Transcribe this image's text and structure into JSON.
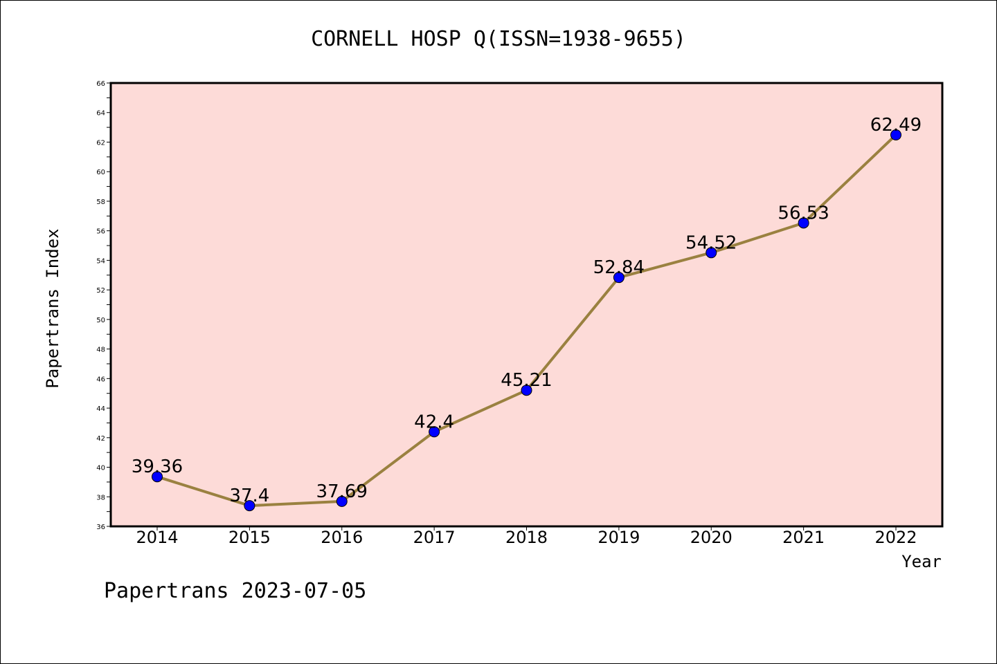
{
  "chart_data": {
    "type": "line",
    "title": "CORNELL HOSP Q(ISSN=1938-9655)",
    "xlabel": "Year",
    "ylabel": "Papertrans Index",
    "x": [
      "2014",
      "2015",
      "2016",
      "2017",
      "2018",
      "2019",
      "2020",
      "2021",
      "2022"
    ],
    "series": [
      {
        "values": [
          39.36,
          37.4,
          37.69,
          42.4,
          45.21,
          52.84,
          54.52,
          56.53,
          62.49
        ],
        "data_labels": [
          "39.36",
          "37.4",
          "37.69",
          "42.4",
          "45.21",
          "52.84",
          "54.52",
          "56.53",
          "62.49"
        ]
      }
    ],
    "ylim": [
      36,
      66
    ],
    "yticks": [
      "36",
      "38",
      "40",
      "42",
      "44",
      "46",
      "48",
      "50",
      "52",
      "54",
      "56",
      "58",
      "60",
      "62",
      "64",
      "66"
    ],
    "grid": false,
    "colors": {
      "plot_background": "#fddbd8",
      "line": "#9a8140",
      "marker": "#0000ff"
    }
  },
  "footer": "Papertrans 2023-07-05"
}
